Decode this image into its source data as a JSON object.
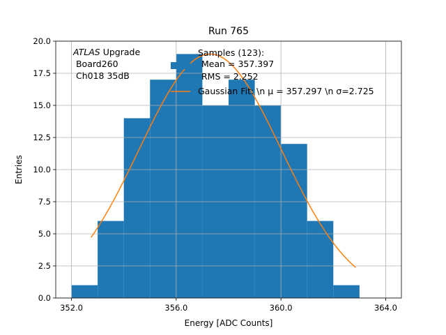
{
  "chart_data": {
    "type": "bar",
    "title": "Run 765",
    "xlabel": "Energy [ADC Counts]",
    "ylabel": "Entries",
    "xlim": [
      351.4,
      364.6
    ],
    "ylim": [
      0,
      20
    ],
    "grid": true,
    "xticks": [
      {
        "value": 352,
        "label": "352.0"
      },
      {
        "value": 356,
        "label": "356.0"
      },
      {
        "value": 360,
        "label": "360.0"
      },
      {
        "value": 364,
        "label": "364.0"
      }
    ],
    "yticks": [
      {
        "value": 0,
        "label": "0.0"
      },
      {
        "value": 2.5,
        "label": "2.5"
      },
      {
        "value": 5,
        "label": "5.0"
      },
      {
        "value": 7.5,
        "label": "7.5"
      },
      {
        "value": 10,
        "label": "10.0"
      },
      {
        "value": 12.5,
        "label": "12.5"
      },
      {
        "value": 15,
        "label": "15.0"
      },
      {
        "value": 17.5,
        "label": "17.5"
      },
      {
        "value": 20,
        "label": "20.0"
      }
    ],
    "histogram": {
      "name": "Samples (123):",
      "color": "#1f77b4",
      "bin_edges": [
        352,
        353,
        354,
        355,
        356,
        357,
        358,
        359,
        360,
        361,
        362,
        363
      ],
      "counts": [
        1,
        6,
        14,
        17,
        19,
        15,
        17,
        15,
        12,
        6,
        1
      ]
    },
    "fit": {
      "name": "Gaussian Fit",
      "color": "#ff7f0e",
      "mu": 357.297,
      "sigma": 2.725,
      "amplitude": 19.0,
      "x_range": [
        352.75,
        362.85
      ]
    },
    "annotation": {
      "italic": "ATLAS",
      "rest": " Upgrade",
      "line2": " Board260",
      "line3": " Ch018 35dB"
    },
    "legend": {
      "placement": "top-center",
      "samples_line1": "Samples (123):",
      "samples_line2": "Mean = 357.397",
      "samples_line3": "RMS = 2.252",
      "fit_label": "Gaussian Fit: \\n μ = 357.297 \\n σ=2.725"
    }
  }
}
